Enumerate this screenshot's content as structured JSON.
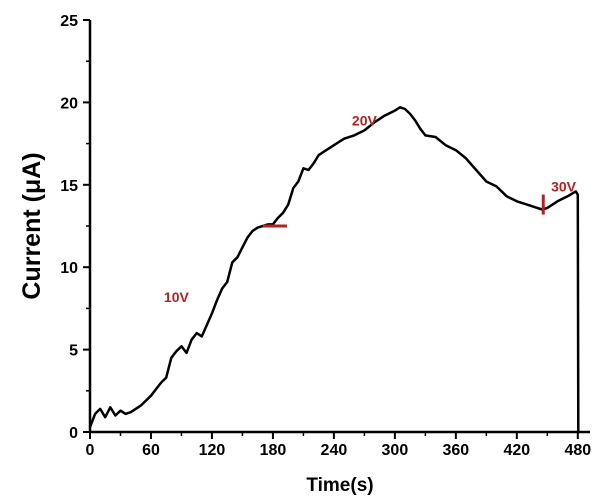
{
  "chart_data": {
    "type": "line",
    "xlabel": "Time(s)",
    "ylabel": "Current (μA)",
    "xlim": [
      0,
      492
    ],
    "ylim": [
      0,
      25
    ],
    "xticks": [
      0,
      60,
      120,
      180,
      240,
      300,
      360,
      420,
      480
    ],
    "yticks": [
      0,
      5,
      10,
      15,
      20,
      25
    ],
    "grid": false,
    "line_color": "#000000",
    "annotation_color": "#b22222",
    "series": [
      {
        "x": [
          0,
          5,
          10,
          15,
          20,
          25,
          30,
          35,
          40,
          50,
          60,
          70,
          75,
          80,
          85,
          90,
          95,
          100,
          105,
          110,
          115,
          120,
          125,
          130,
          135,
          140,
          145,
          150,
          155,
          160,
          165,
          170,
          175,
          180,
          185,
          190,
          195,
          200,
          205,
          210,
          215,
          220,
          225,
          230,
          240,
          250,
          260,
          270,
          280,
          290,
          300,
          305,
          310,
          315,
          320,
          325,
          330,
          340,
          350,
          360,
          370,
          380,
          390,
          400,
          410,
          420,
          430,
          440,
          445,
          450,
          460,
          470,
          478,
          480,
          480.5
        ],
        "y": [
          0.3,
          1.1,
          1.4,
          0.9,
          1.5,
          1.0,
          1.3,
          1.1,
          1.2,
          1.6,
          2.2,
          3.0,
          3.3,
          4.5,
          4.9,
          5.2,
          4.8,
          5.6,
          6.0,
          5.8,
          6.5,
          7.2,
          8.0,
          8.7,
          9.1,
          10.3,
          10.6,
          11.2,
          11.8,
          12.2,
          12.4,
          12.5,
          12.6,
          12.6,
          13.0,
          13.3,
          13.8,
          14.8,
          15.2,
          16.0,
          15.9,
          16.3,
          16.8,
          17.0,
          17.4,
          17.8,
          18.0,
          18.3,
          18.8,
          19.2,
          19.5,
          19.7,
          19.6,
          19.3,
          18.9,
          18.4,
          18.0,
          17.9,
          17.4,
          17.1,
          16.6,
          15.9,
          15.2,
          14.9,
          14.3,
          14.0,
          13.8,
          13.6,
          13.5,
          13.6,
          14.0,
          14.3,
          14.6,
          14.4,
          0
        ]
      }
    ],
    "annotations": [
      {
        "text": "10V",
        "x": 85,
        "y": 7.9
      },
      {
        "text": "20V",
        "x": 270,
        "y": 18.6
      },
      {
        "text": "30V",
        "x": 466,
        "y": 14.6
      }
    ],
    "markers": [
      {
        "orientation": "horizontal",
        "x": 182,
        "y": 12.5
      },
      {
        "orientation": "vertical",
        "x": 446,
        "y": 13.8
      }
    ]
  }
}
